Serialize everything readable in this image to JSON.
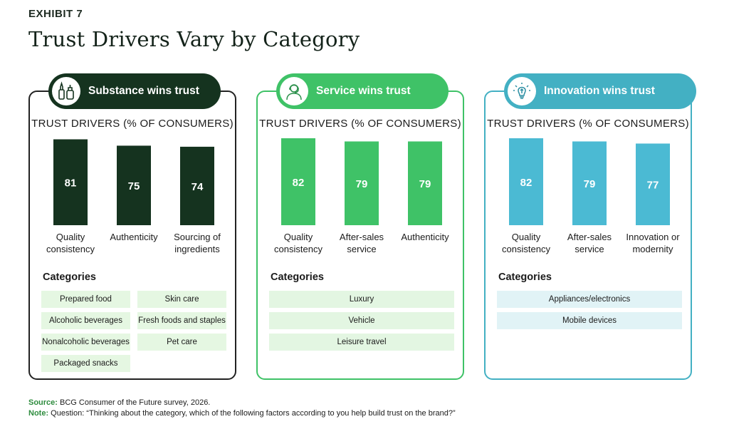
{
  "exhibit": "EXHIBIT 7",
  "title": "Trust Drivers Vary by Category",
  "panels": [
    {
      "heading": "Substance wins trust",
      "icon": "cosmetics-bottle-icon",
      "colors": {
        "bar": "#15331f",
        "pill": "#15331f",
        "border": "#222222",
        "tag": "#e5f7e2",
        "bar_text": "#ffffff"
      },
      "drivers_title": "TRUST DRIVERS (% OF CONSUMERS)",
      "categories_title": "Categories",
      "categories": [
        "Prepared food",
        "Skin care",
        "Alcoholic beverages",
        "Fresh foods and staples",
        "Nonalcoholic beverages",
        "Pet care",
        "Packaged snacks"
      ]
    },
    {
      "heading": "Service wins trust",
      "icon": "service-person-icon",
      "colors": {
        "bar": "#3fc267",
        "pill": "#3fc267",
        "border": "#3fc267",
        "tag": "#e3f6e2",
        "bar_text": "#ffffff"
      },
      "drivers_title": "TRUST DRIVERS (% OF CONSUMERS)",
      "categories_title": "Categories",
      "categories": [
        "Luxury",
        "Vehicle",
        "Leisure travel"
      ]
    },
    {
      "heading": "Innovation wins trust",
      "icon": "lightbulb-icon",
      "colors": {
        "bar": "#4bbad3",
        "pill": "#43b0c3",
        "border": "#43b0c3",
        "tag": "#e1f3f6",
        "bar_text": "#ffffff"
      },
      "drivers_title": "TRUST DRIVERS (% OF CONSUMERS)",
      "categories_title": "Categories",
      "categories": [
        "Appliances/electronics",
        "Mobile devices"
      ]
    }
  ],
  "chart_data": [
    {
      "type": "bar",
      "title": "TRUST DRIVERS (% OF CONSUMERS)",
      "categories": [
        "Quality consistency",
        "Authenticity",
        "Sourcing of ingredients"
      ],
      "values": [
        81,
        75,
        74
      ],
      "ylim": [
        0,
        82
      ]
    },
    {
      "type": "bar",
      "title": "TRUST DRIVERS (% OF CONSUMERS)",
      "categories": [
        "Quality consistency",
        "After-sales service",
        "Authenticity"
      ],
      "values": [
        82,
        79,
        79
      ],
      "ylim": [
        0,
        82
      ]
    },
    {
      "type": "bar",
      "title": "TRUST DRIVERS (% OF CONSUMERS)",
      "categories": [
        "Quality consistency",
        "After-sales service",
        "Innovation or modernity"
      ],
      "values": [
        82,
        79,
        77
      ],
      "ylim": [
        0,
        82
      ]
    }
  ],
  "footer": {
    "source_label": "Source:",
    "source_text": "BCG Consumer of the Future survey, 2026.",
    "note_label": "Note:",
    "note_text": "Question: “Thinking about the category, which of the following factors according to you help build trust on the brand?”"
  }
}
